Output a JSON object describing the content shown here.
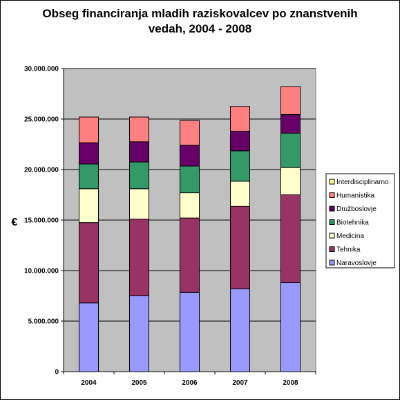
{
  "chart_data": {
    "type": "bar",
    "stacked": true,
    "title": "Obseg financiranja mladih raziskovalcev po znanstvenih\nvedah, 2004 - 2008",
    "xlabel": "",
    "ylabel": "€",
    "ylim": [
      0,
      30000000
    ],
    "y_ticks": [
      0,
      5000000,
      10000000,
      15000000,
      20000000,
      25000000,
      30000000
    ],
    "y_tick_labels": [
      "0",
      "5.000.000",
      "10.000.000",
      "15.000.000",
      "20.000.000",
      "25.000.000",
      "30.000.000"
    ],
    "grid": true,
    "plot_background": "#c0c0c0",
    "legend_position": "right",
    "categories": [
      "2004",
      "2005",
      "2006",
      "2007",
      "2008"
    ],
    "series": [
      {
        "name": "Naravoslovje",
        "color": "#9999ff",
        "values": [
          6800000,
          7500000,
          7850000,
          8200000,
          8800000
        ]
      },
      {
        "name": "Tehnika",
        "color": "#993366",
        "values": [
          7950000,
          7600000,
          7350000,
          8150000,
          8700000
        ]
      },
      {
        "name": "Medicina",
        "color": "#ffffcc",
        "values": [
          3350000,
          3000000,
          2500000,
          2500000,
          2700000
        ]
      },
      {
        "name": "Biotehnika",
        "color": "#339966",
        "values": [
          2450000,
          2650000,
          2650000,
          3000000,
          3400000
        ]
      },
      {
        "name": "Družboslovje",
        "color": "#660066",
        "values": [
          2100000,
          2000000,
          2050000,
          1950000,
          1850000
        ]
      },
      {
        "name": "Humanistika",
        "color": "#ff8080",
        "values": [
          2550000,
          2450000,
          2450000,
          2450000,
          2750000
        ]
      },
      {
        "name": "Interdisciplinarno",
        "color": "#ffff99",
        "values": [
          0,
          0,
          0,
          0,
          0
        ]
      }
    ],
    "legend_order": [
      "Interdisciplinarno",
      "Humanistika",
      "Družboslovje",
      "Biotehnika",
      "Medicina",
      "Tehnika",
      "Naravoslovje"
    ]
  }
}
